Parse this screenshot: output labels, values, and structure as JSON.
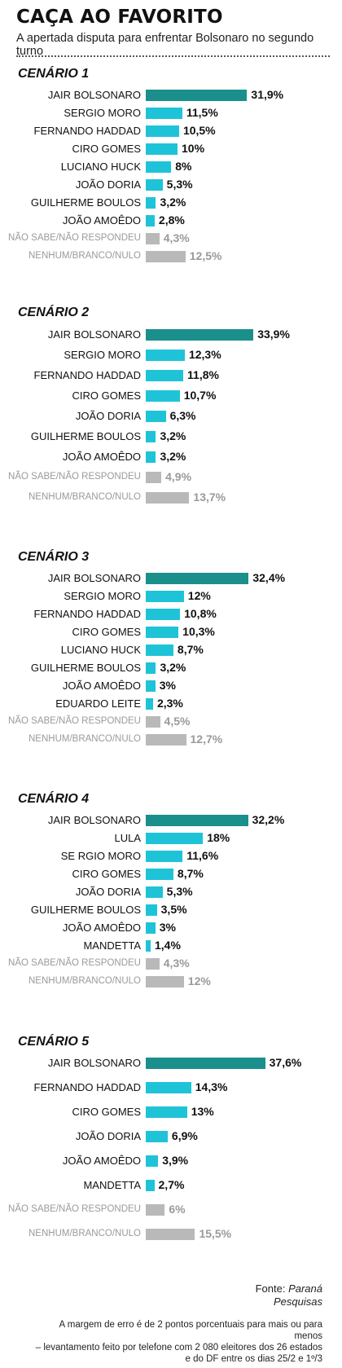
{
  "header": {
    "title": "CAÇA AO FAVORITO",
    "subtitle": "A apertada disputa para enfrentar Bolsonaro no segundo turno"
  },
  "colors": {
    "leader": "#1a8f8b",
    "candidate": "#1fc3d8",
    "neutral": "#b9b9b9"
  },
  "chart_data": [
    {
      "type": "bar",
      "orientation": "horizontal",
      "title": "CENÁRIO 1",
      "categories": [
        "JAIR BOLSONARO",
        "SERGIO MORO",
        "FERNANDO HADDAD",
        "CIRO GOMES",
        "LUCIANO HUCK",
        "JOÃO DORIA",
        "GUILHERME BOULOS",
        "JOÃO AMOÊDO",
        "NÃO SABE/NÃO RESPONDEU",
        "NENHUM/BRANCO/NULO"
      ],
      "values": [
        31.9,
        11.5,
        10.5,
        10,
        8,
        5.3,
        3.2,
        2.8,
        4.3,
        12.5
      ],
      "value_labels": [
        "31,9%",
        "11,5%",
        "10,5%",
        "10%",
        "8%",
        "5,3%",
        "3,2%",
        "2,8%",
        "4,3%",
        "12,5%"
      ]
    },
    {
      "type": "bar",
      "orientation": "horizontal",
      "title": "CENÁRIO 2",
      "categories": [
        "JAIR BOLSONARO",
        "SERGIO MORO",
        "FERNANDO HADDAD",
        "CIRO GOMES",
        "JOÃO DORIA",
        "GUILHERME BOULOS",
        "JOÃO AMOÊDO",
        "NÃO SABE/NÃO RESPONDEU",
        "NENHUM/BRANCO/NULO"
      ],
      "values": [
        33.9,
        12.3,
        11.8,
        10.7,
        6.3,
        3.2,
        3.2,
        4.9,
        13.7
      ],
      "value_labels": [
        "33,9%",
        "12,3%",
        "11,8%",
        "10,7%",
        "6,3%",
        "3,2%",
        "3,2%",
        "4,9%",
        "13,7%"
      ]
    },
    {
      "type": "bar",
      "orientation": "horizontal",
      "title": "CENÁRIO 3",
      "categories": [
        "JAIR BOLSONARO",
        "SERGIO MORO",
        "FERNANDO HADDAD",
        "CIRO GOMES",
        "LUCIANO HUCK",
        "GUILHERME BOULOS",
        "JOÃO AMOÊDO",
        "EDUARDO LEITE",
        "NÃO SABE/NÃO RESPONDEU",
        "NENHUM/BRANCO/NULO"
      ],
      "values": [
        32.4,
        12,
        10.8,
        10.3,
        8.7,
        3.2,
        3,
        2.3,
        4.5,
        12.7
      ],
      "value_labels": [
        "32,4%",
        "12%",
        "10,8%",
        "10,3%",
        "8,7%",
        "3,2%",
        "3%",
        "2,3%",
        "4,5%",
        "12,7%"
      ]
    },
    {
      "type": "bar",
      "orientation": "horizontal",
      "title": "CENÁRIO 4",
      "categories": [
        "JAIR BOLSONARO",
        "LULA",
        "SE RGIO MORO",
        "CIRO GOMES",
        "JOÃO DORIA",
        "GUILHERME BOULOS",
        "JOÃO AMOÊDO",
        "MANDETTA",
        "NÃO SABE/NÃO RESPONDEU",
        "NENHUM/BRANCO/NULO"
      ],
      "values": [
        32.2,
        18,
        11.6,
        8.7,
        5.3,
        3.5,
        3,
        1.4,
        4.3,
        12
      ],
      "value_labels": [
        "32,2%",
        "18%",
        "11,6%",
        "8,7%",
        "5,3%",
        "3,5%",
        "3%",
        "1,4%",
        "4,3%",
        "12%"
      ]
    },
    {
      "type": "bar",
      "orientation": "horizontal",
      "title": "CENÁRIO 5",
      "categories": [
        "JAIR BOLSONARO",
        "FERNANDO HADDAD",
        "CIRO GOMES",
        "JOÃO DORIA",
        "JOÃO AMOÊDO",
        "MANDETTA",
        "NÃO SABE/NÃO RESPONDEU",
        "NENHUM/BRANCO/NULO"
      ],
      "values": [
        37.6,
        14.3,
        13,
        6.9,
        3.9,
        2.7,
        6,
        15.5
      ],
      "value_labels": [
        "37,6%",
        "14,3%",
        "13%",
        "6,9%",
        "3,9%",
        "2,7%",
        "6%",
        "15,5%"
      ]
    }
  ],
  "footer": {
    "source_label": "Fonte:",
    "source_name_line1": "Paraná",
    "source_name_line2": "Pesquisas",
    "note_line1": "A margem de erro é de 2 pontos porcentuais para mais ou para menos",
    "note_line2": "– levantamento feito por telefone com 2 080 eleitores dos 26 estados",
    "note_line3": "e do DF entre os dias 25/2 e 1º/3"
  }
}
